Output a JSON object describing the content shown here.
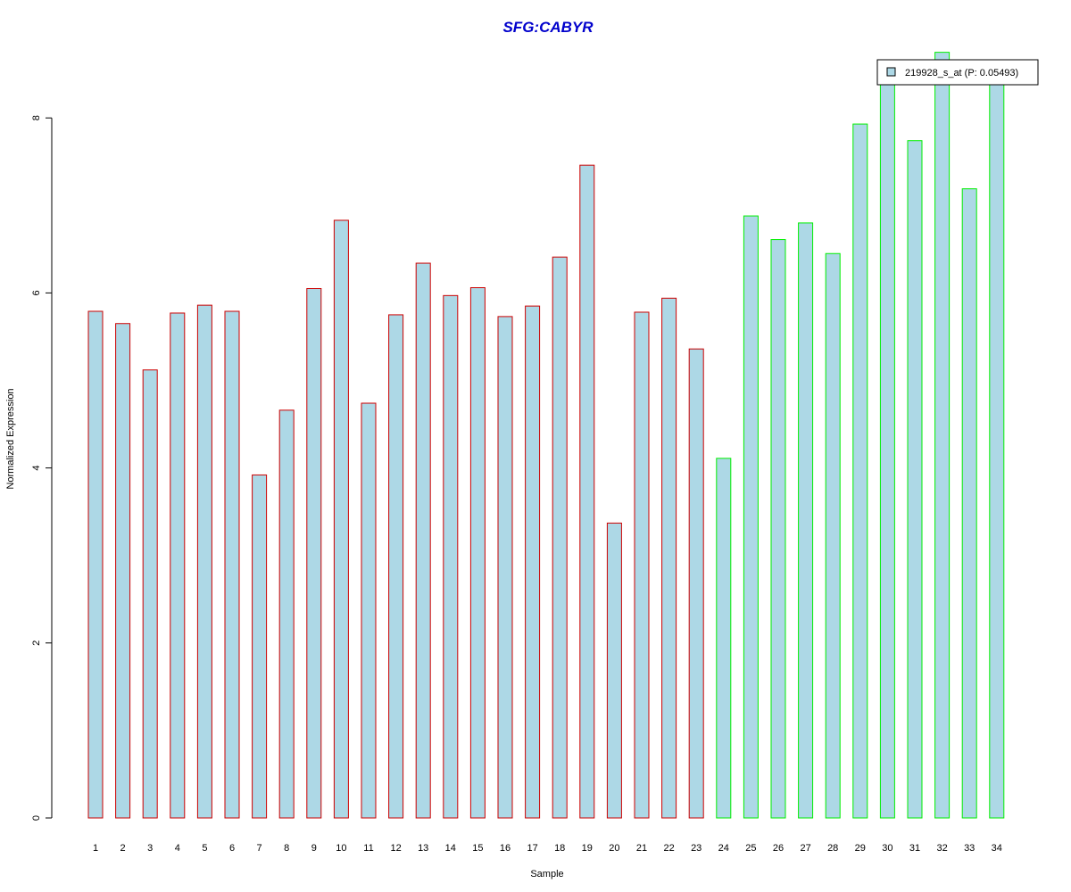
{
  "chart_data": {
    "type": "bar",
    "title": "SFG:CABYR",
    "xlabel": "Sample",
    "ylabel": "Normalized Expression",
    "ylim": [
      0,
      8.75
    ],
    "yticks": [
      0,
      2,
      4,
      6,
      8
    ],
    "grid": false,
    "legend_position": "top-right",
    "legend_label": "219928_s_at (P: 0.05493)",
    "categories": [
      "1",
      "2",
      "3",
      "4",
      "5",
      "6",
      "7",
      "8",
      "9",
      "10",
      "11",
      "12",
      "13",
      "14",
      "15",
      "16",
      "17",
      "18",
      "19",
      "20",
      "21",
      "22",
      "23",
      "24",
      "25",
      "26",
      "27",
      "28",
      "29",
      "30",
      "31",
      "32",
      "33",
      "34"
    ],
    "series": [
      {
        "name": "219928_s_at (P: 0.05493)",
        "values": [
          5.79,
          5.65,
          5.12,
          5.77,
          5.86,
          5.79,
          3.92,
          4.66,
          6.05,
          6.83,
          4.74,
          5.75,
          6.34,
          5.97,
          6.06,
          5.73,
          5.85,
          6.41,
          7.46,
          3.37,
          5.78,
          5.94,
          5.36,
          4.11,
          6.88,
          6.61,
          6.8,
          6.45,
          7.93,
          8.43,
          7.74,
          8.75,
          7.19,
          8.43
        ]
      }
    ],
    "group_border_colors": [
      "#cc0000",
      "#cc0000",
      "#cc0000",
      "#cc0000",
      "#cc0000",
      "#cc0000",
      "#cc0000",
      "#cc0000",
      "#cc0000",
      "#cc0000",
      "#cc0000",
      "#cc0000",
      "#cc0000",
      "#cc0000",
      "#cc0000",
      "#cc0000",
      "#cc0000",
      "#cc0000",
      "#cc0000",
      "#cc0000",
      "#cc0000",
      "#cc0000",
      "#cc0000",
      "#00ee00",
      "#00ee00",
      "#00ee00",
      "#00ee00",
      "#00ee00",
      "#00ee00",
      "#00ee00",
      "#00ee00",
      "#00ee00",
      "#00ee00",
      "#00ee00"
    ],
    "bar_fill": "#add8e6",
    "title_color": "#0000cc"
  }
}
